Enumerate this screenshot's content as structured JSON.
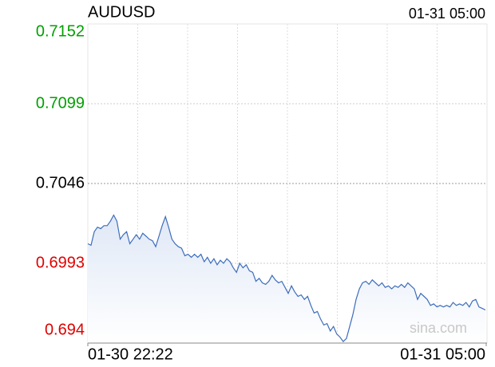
{
  "chart_data": {
    "type": "line",
    "title": "AUDUSD",
    "time": "01-31 05:00",
    "watermark": "sina.com",
    "x_labels": [
      "01-30 22:22",
      "01-31 05:00"
    ],
    "ylim": [
      0.694,
      0.7152
    ],
    "yticks": [
      0.7152,
      0.7099,
      0.7046,
      0.6993,
      0.694
    ],
    "ytick_colors": [
      "#00a000",
      "#00a000",
      "#000000",
      "#e00000",
      "#e00000"
    ],
    "x_grid_divisions": 8,
    "grid": true,
    "series": [
      {
        "color": "#3d6dbb",
        "values": [
          0.7006,
          0.7005,
          0.7014,
          0.7017,
          0.7016,
          0.7018,
          0.7018,
          0.7021,
          0.7025,
          0.7021,
          0.7009,
          0.7012,
          0.7014,
          0.7006,
          0.7009,
          0.7012,
          0.7009,
          0.7013,
          0.7011,
          0.7009,
          0.7008,
          0.7004,
          0.7011,
          0.7018,
          0.7024,
          0.7017,
          0.7009,
          0.7006,
          0.7004,
          0.7003,
          0.6998,
          0.6999,
          0.6997,
          0.6999,
          0.6997,
          0.6999,
          0.6994,
          0.6997,
          0.6993,
          0.6996,
          0.6992,
          0.6995,
          0.6993,
          0.6996,
          0.6994,
          0.699,
          0.6987,
          0.6993,
          0.699,
          0.6992,
          0.6988,
          0.6987,
          0.6981,
          0.6983,
          0.698,
          0.6979,
          0.6981,
          0.6985,
          0.6982,
          0.698,
          0.6981,
          0.6977,
          0.6973,
          0.6978,
          0.6974,
          0.6971,
          0.6972,
          0.6969,
          0.6971,
          0.6965,
          0.696,
          0.6961,
          0.6956,
          0.6952,
          0.6953,
          0.6948,
          0.6951,
          0.6946,
          0.6944,
          0.6941,
          0.6943,
          0.6951,
          0.6959,
          0.6969,
          0.6976,
          0.698,
          0.6981,
          0.6979,
          0.6982,
          0.698,
          0.6978,
          0.698,
          0.6977,
          0.6978,
          0.6976,
          0.6978,
          0.6977,
          0.6979,
          0.6977,
          0.698,
          0.6978,
          0.6976,
          0.6969,
          0.6973,
          0.6971,
          0.6969,
          0.6965,
          0.6966,
          0.6964,
          0.6965,
          0.6964,
          0.6965,
          0.6964,
          0.6967,
          0.6965,
          0.6966,
          0.6965,
          0.6967,
          0.6964,
          0.6968,
          0.6969,
          0.6964,
          0.6963,
          0.6962
        ]
      }
    ]
  }
}
